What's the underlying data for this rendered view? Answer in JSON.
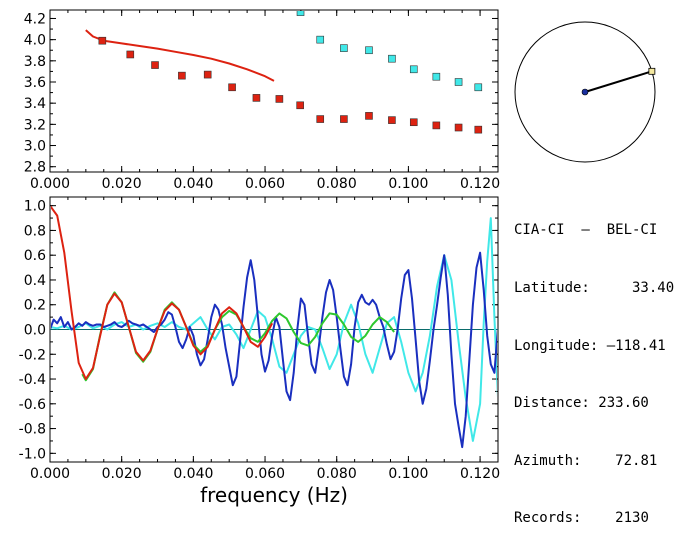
{
  "station_info": {
    "pair": "CIA-CI  –  BEL-CI",
    "latitude_label": "Latitude:",
    "latitude_value": "33.40",
    "longitude_label": "Longitude:",
    "longitude_value": "–118.41",
    "distance_label": "Distance:",
    "distance_value": "233.60",
    "azimuth_label": "Azimuth:",
    "azimuth_value": "72.81",
    "records_label": "Records:",
    "records_value": "2130"
  },
  "colors": {
    "red": "#dd2211",
    "blue": "#1a2fbf",
    "green": "#2ec82e",
    "cyan": "#40e8e8",
    "dark_cyan": "#0a6b6b"
  },
  "chart_data": [
    {
      "type": "scatter",
      "title": "",
      "xlabel": "",
      "ylabel": "",
      "xlim": [
        0.0,
        0.125
      ],
      "ylim": [
        2.75,
        4.28
      ],
      "grid": false,
      "xticks": [
        "0.000",
        "0.020",
        "0.040",
        "0.060",
        "0.080",
        "0.100",
        "0.120"
      ],
      "xtick_values": [
        0.0,
        0.02,
        0.04,
        0.06,
        0.08,
        0.1,
        0.12
      ],
      "yticks": [
        "2.8",
        "3.0",
        "3.2",
        "3.4",
        "3.6",
        "3.8",
        "4.0",
        "4.2"
      ],
      "ytick_values": [
        2.8,
        3.0,
        3.2,
        3.4,
        3.6,
        3.8,
        4.0,
        4.2
      ],
      "series": [
        {
          "kind": "line",
          "color": "red",
          "x": [
            0.01,
            0.012,
            0.015,
            0.02,
            0.025,
            0.03,
            0.035,
            0.04,
            0.045,
            0.05,
            0.055,
            0.06,
            0.0625
          ],
          "y": [
            4.09,
            4.03,
            3.99,
            3.965,
            3.94,
            3.915,
            3.885,
            3.855,
            3.82,
            3.775,
            3.72,
            3.655,
            3.61
          ]
        },
        {
          "kind": "points",
          "color": "red",
          "x": [
            0.0146,
            0.0224,
            0.0293,
            0.0368,
            0.044,
            0.0508,
            0.0576,
            0.064,
            0.0698,
            0.0754,
            0.082,
            0.089,
            0.0954,
            0.1015,
            0.1078,
            0.114,
            0.1195
          ],
          "y": [
            3.99,
            3.86,
            3.76,
            3.66,
            3.67,
            3.55,
            3.45,
            3.44,
            3.38,
            3.25,
            3.25,
            3.28,
            3.24,
            3.22,
            3.19,
            3.17,
            3.15
          ]
        },
        {
          "kind": "points",
          "color": "cyan",
          "x": [
            0.0699,
            0.0754,
            0.082,
            0.089,
            0.0954,
            0.1015,
            0.1078,
            0.114,
            0.1195
          ],
          "y": [
            4.26,
            4.0,
            3.92,
            3.9,
            3.82,
            3.72,
            3.65,
            3.6,
            3.55
          ]
        }
      ]
    },
    {
      "type": "line",
      "title": "",
      "xlabel": "frequency  (Hz)",
      "ylabel": "",
      "xlim": [
        0.0,
        0.125
      ],
      "ylim": [
        -1.07,
        1.07
      ],
      "grid": false,
      "xticks": [
        "0.000",
        "0.020",
        "0.040",
        "0.060",
        "0.080",
        "0.100",
        "0.120"
      ],
      "xtick_values": [
        0.0,
        0.02,
        0.04,
        0.06,
        0.08,
        0.1,
        0.12
      ],
      "yticks": [
        "-1.0",
        "-0.8",
        "-0.6",
        "-0.4",
        "-0.2",
        "0.0",
        "0.2",
        "0.4",
        "0.6",
        "0.8",
        "1.0"
      ],
      "ytick_values": [
        -1.0,
        -0.8,
        -0.6,
        -0.4,
        -0.2,
        0.0,
        0.2,
        0.4,
        0.6,
        0.8,
        1.0
      ],
      "series": [
        {
          "kind": "line",
          "color": "red",
          "x": [
            0.0,
            0.002,
            0.004,
            0.006,
            0.008,
            0.01,
            0.012,
            0.014,
            0.016,
            0.018,
            0.02,
            0.022,
            0.024,
            0.026,
            0.028,
            0.03,
            0.032,
            0.034,
            0.036,
            0.038,
            0.04,
            0.042,
            0.044,
            0.046,
            0.048,
            0.05,
            0.052,
            0.054,
            0.056,
            0.058,
            0.06,
            0.062
          ],
          "y": [
            1.0,
            0.92,
            0.62,
            0.15,
            -0.27,
            -0.4,
            -0.31,
            -0.05,
            0.2,
            0.29,
            0.22,
            0.02,
            -0.18,
            -0.25,
            -0.17,
            0.0,
            0.15,
            0.21,
            0.16,
            0.02,
            -0.13,
            -0.2,
            -0.14,
            0.0,
            0.13,
            0.18,
            0.13,
            0.02,
            -0.1,
            -0.14,
            -0.06,
            0.05
          ]
        },
        {
          "kind": "line",
          "color": "green",
          "x": [
            0.009,
            0.01,
            0.012,
            0.014,
            0.016,
            0.018,
            0.02,
            0.022,
            0.024,
            0.026,
            0.028,
            0.03,
            0.032,
            0.034,
            0.036,
            0.038,
            0.04,
            0.042,
            0.044,
            0.046,
            0.048,
            0.05,
            0.052,
            0.054,
            0.056,
            0.058,
            0.06,
            0.062,
            0.064,
            0.066,
            0.068,
            0.07,
            0.072,
            0.074,
            0.076,
            0.078,
            0.08,
            0.082,
            0.084,
            0.086,
            0.088,
            0.09,
            0.092,
            0.094,
            0.096
          ],
          "y": [
            -0.36,
            -0.41,
            -0.32,
            -0.04,
            0.2,
            0.3,
            0.22,
            0.02,
            -0.19,
            -0.26,
            -0.18,
            0.0,
            0.16,
            0.22,
            0.16,
            0.02,
            -0.12,
            -0.18,
            -0.13,
            0.0,
            0.1,
            0.15,
            0.12,
            0.02,
            -0.07,
            -0.1,
            -0.03,
            0.07,
            0.13,
            0.09,
            -0.02,
            -0.11,
            -0.13,
            -0.06,
            0.05,
            0.13,
            0.12,
            0.04,
            -0.06,
            -0.1,
            -0.05,
            0.04,
            0.1,
            0.06,
            -0.02
          ]
        },
        {
          "kind": "line",
          "color": "blue",
          "x": [
            0.0,
            0.001,
            0.002,
            0.003,
            0.004,
            0.005,
            0.006,
            0.007,
            0.008,
            0.009,
            0.01,
            0.011,
            0.012,
            0.013,
            0.014,
            0.015,
            0.016,
            0.017,
            0.018,
            0.019,
            0.02,
            0.021,
            0.022,
            0.023,
            0.024,
            0.025,
            0.026,
            0.027,
            0.028,
            0.029,
            0.03,
            0.031,
            0.032,
            0.033,
            0.034,
            0.035,
            0.036,
            0.037,
            0.038,
            0.039,
            0.04,
            0.041,
            0.042,
            0.043,
            0.044,
            0.045,
            0.046,
            0.047,
            0.048,
            0.049,
            0.05,
            0.051,
            0.052,
            0.053,
            0.054,
            0.055,
            0.056,
            0.057,
            0.058,
            0.059,
            0.06,
            0.061,
            0.062,
            0.063,
            0.064,
            0.065,
            0.066,
            0.067,
            0.068,
            0.069,
            0.07,
            0.071,
            0.072,
            0.073,
            0.074,
            0.075,
            0.076,
            0.077,
            0.078,
            0.079,
            0.08,
            0.081,
            0.082,
            0.083,
            0.084,
            0.085,
            0.086,
            0.087,
            0.088,
            0.089,
            0.09,
            0.091,
            0.092,
            0.093,
            0.094,
            0.095,
            0.096,
            0.097,
            0.098,
            0.099,
            0.1,
            0.101,
            0.102,
            0.103,
            0.104,
            0.105,
            0.106,
            0.107,
            0.108,
            0.109,
            0.11,
            0.111,
            0.112,
            0.113,
            0.114,
            0.115,
            0.116,
            0.117,
            0.118,
            0.119,
            0.12,
            0.121,
            0.122,
            0.123,
            0.124,
            0.125
          ],
          "y": [
            0.0,
            0.08,
            0.05,
            0.1,
            0.02,
            0.06,
            0.0,
            0.02,
            0.05,
            0.03,
            0.06,
            0.04,
            0.03,
            0.04,
            0.04,
            0.02,
            0.03,
            0.04,
            0.06,
            0.03,
            0.02,
            0.04,
            0.07,
            0.05,
            0.04,
            0.03,
            0.04,
            0.02,
            0.0,
            -0.02,
            0.02,
            0.04,
            0.08,
            0.14,
            0.12,
            0.02,
            -0.1,
            -0.15,
            -0.08,
            0.02,
            -0.05,
            -0.2,
            -0.29,
            -0.24,
            -0.08,
            0.1,
            0.2,
            0.16,
            0.04,
            -0.15,
            -0.3,
            -0.45,
            -0.38,
            -0.1,
            0.18,
            0.42,
            0.56,
            0.4,
            0.1,
            -0.2,
            -0.34,
            -0.25,
            -0.05,
            0.1,
            0.02,
            -0.25,
            -0.5,
            -0.57,
            -0.35,
            0.0,
            0.25,
            0.2,
            -0.05,
            -0.28,
            -0.35,
            -0.14,
            0.1,
            0.3,
            0.4,
            0.32,
            0.1,
            -0.15,
            -0.38,
            -0.45,
            -0.28,
            0.02,
            0.22,
            0.28,
            0.22,
            0.2,
            0.24,
            0.2,
            0.1,
            0.02,
            -0.12,
            -0.24,
            -0.18,
            0.0,
            0.25,
            0.44,
            0.48,
            0.25,
            -0.08,
            -0.42,
            -0.6,
            -0.48,
            -0.25,
            0.0,
            0.2,
            0.42,
            0.6,
            0.28,
            -0.2,
            -0.6,
            -0.78,
            -0.95,
            -0.7,
            -0.25,
            0.2,
            0.5,
            0.62,
            0.32,
            -0.05,
            -0.28,
            -0.35,
            0.02
          ]
        },
        {
          "kind": "line",
          "color": "cyan",
          "x": [
            0.0,
            0.002,
            0.004,
            0.006,
            0.008,
            0.01,
            0.012,
            0.014,
            0.016,
            0.018,
            0.02,
            0.022,
            0.024,
            0.026,
            0.028,
            0.03,
            0.032,
            0.034,
            0.036,
            0.038,
            0.04,
            0.042,
            0.044,
            0.046,
            0.048,
            0.05,
            0.052,
            0.054,
            0.056,
            0.058,
            0.06,
            0.062,
            0.064,
            0.066,
            0.068,
            0.07,
            0.072,
            0.074,
            0.076,
            0.078,
            0.08,
            0.082,
            0.084,
            0.086,
            0.088,
            0.09,
            0.092,
            0.094,
            0.096,
            0.098,
            0.1,
            0.102,
            0.104,
            0.106,
            0.108,
            0.11,
            0.112,
            0.114,
            0.116,
            0.118,
            0.12,
            0.121,
            0.122,
            0.123,
            0.124,
            0.125
          ],
          "y": [
            0.02,
            0.01,
            0.03,
            0.0,
            0.02,
            0.05,
            0.01,
            0.03,
            0.0,
            0.04,
            0.06,
            0.02,
            0.04,
            0.0,
            0.03,
            0.05,
            0.02,
            0.06,
            0.02,
            0.0,
            0.05,
            0.1,
            0.0,
            -0.08,
            0.02,
            0.04,
            -0.04,
            -0.15,
            0.0,
            0.15,
            0.1,
            -0.08,
            -0.3,
            -0.35,
            -0.2,
            -0.05,
            0.02,
            0.0,
            -0.15,
            -0.32,
            -0.2,
            0.05,
            0.2,
            0.05,
            -0.2,
            -0.35,
            -0.15,
            0.05,
            0.1,
            -0.1,
            -0.35,
            -0.5,
            -0.35,
            -0.05,
            0.35,
            0.6,
            0.4,
            -0.1,
            -0.55,
            -0.9,
            -0.6,
            0.05,
            0.55,
            0.9,
            0.1,
            -0.55
          ]
        }
      ]
    }
  ],
  "inset": {
    "type": "azimuth-dial",
    "azimuth_deg": 72.81
  }
}
